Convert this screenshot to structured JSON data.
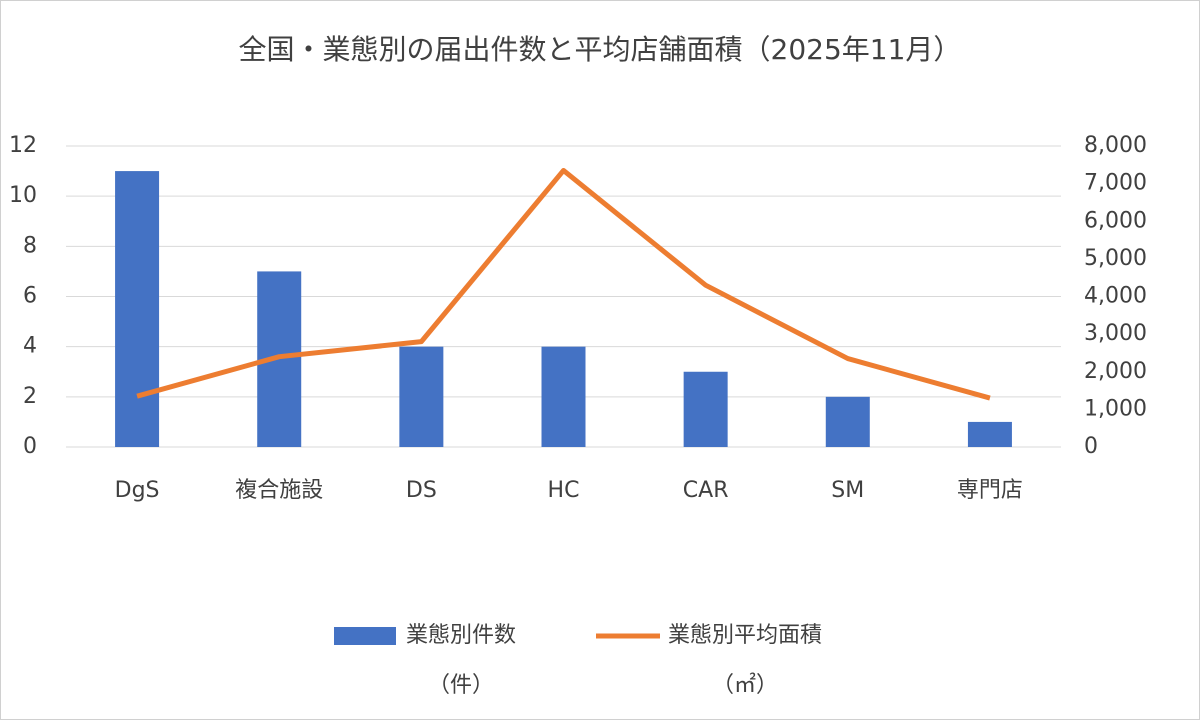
{
  "chart_data": {
    "type": "bar_line",
    "title": "全国・業態別の届出件数と平均店舗面積（2025年11月）",
    "categories": [
      "DgS",
      "複合施設",
      "DS",
      "HC",
      "CAR",
      "SM",
      "専門店"
    ],
    "series": [
      {
        "name": "業態別件数\n（件）",
        "type": "bar",
        "color": "#4472c4",
        "values": [
          11,
          7,
          4,
          4,
          3,
          2,
          1
        ]
      },
      {
        "name": "業態別平均面積\n（㎡）",
        "type": "line",
        "axis": "y2",
        "color": "#ed7d31",
        "values": [
          1350,
          2400,
          2800,
          7350,
          4300,
          2350,
          1300
        ]
      }
    ],
    "ylim": [
      0,
      12
    ],
    "yticks": [
      0,
      2,
      4,
      6,
      8,
      10,
      12
    ],
    "y2lim": [
      0,
      8000
    ],
    "y2ticks": [
      0,
      {
        "value": 1000,
        "label": "1,000"
      },
      {
        "value": 2000,
        "label": "2,000"
      },
      {
        "value": 3000,
        "label": "3,000"
      },
      {
        "value": 4000,
        "label": "4,000"
      },
      {
        "value": 5000,
        "label": "5,000"
      },
      {
        "value": 6000,
        "label": "6,000"
      },
      {
        "value": 7000,
        "label": "7,000"
      },
      {
        "value": 8000,
        "label": "8,000"
      }
    ],
    "grid": true
  }
}
